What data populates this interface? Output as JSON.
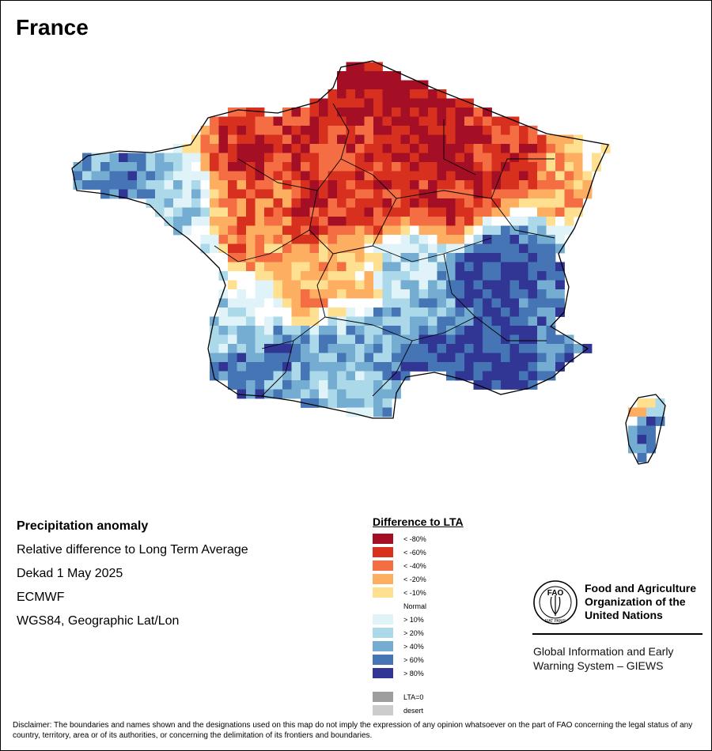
{
  "title": "France",
  "info": {
    "line1": "Precipitation anomaly",
    "line2": "Relative difference to Long Term Average",
    "line3": "Dekad 1 May 2025",
    "line4": "ECMWF",
    "line5": "WGS84, Geographic Lat/Lon"
  },
  "legend": {
    "title": "Difference to LTA",
    "items": [
      {
        "label": "< -80%",
        "color": "#a50f26"
      },
      {
        "label": "< -60%",
        "color": "#d7301f"
      },
      {
        "label": "< -40%",
        "color": "#f46d43"
      },
      {
        "label": "< -20%",
        "color": "#fdae61"
      },
      {
        "label": "< -10%",
        "color": "#fee090"
      },
      {
        "label": "Normal",
        "color": "#ffffff"
      },
      {
        "label": "> 10%",
        "color": "#e0f3f8"
      },
      {
        "label": "> 20%",
        "color": "#abd9e9"
      },
      {
        "label": "> 40%",
        "color": "#74add1"
      },
      {
        "label": "> 60%",
        "color": "#4575b4"
      },
      {
        "label": "> 80%",
        "color": "#313695"
      }
    ],
    "extra": [
      {
        "label": "LTA=0",
        "color": "#9e9e9e"
      },
      {
        "label": "desert",
        "color": "#cccccc"
      }
    ]
  },
  "org": {
    "name_line1": "Food and Agriculture",
    "name_line2": "Organization of the",
    "name_line3": "United Nations",
    "logo_text": "FAO",
    "logo_ring_text": "FIAT PANIS",
    "giews_line1": "Global Information and Early",
    "giews_line2": "Warning System – GIEWS"
  },
  "disclaimer": "Disclaimer: The boundaries and names shown and the designations used on this map do not imply the expression of any opinion whatsoever on the part of FAO concerning the legal status of any country, territory, area or of its authorities, or concerning the delimitation of its frontiers and boundaries."
}
